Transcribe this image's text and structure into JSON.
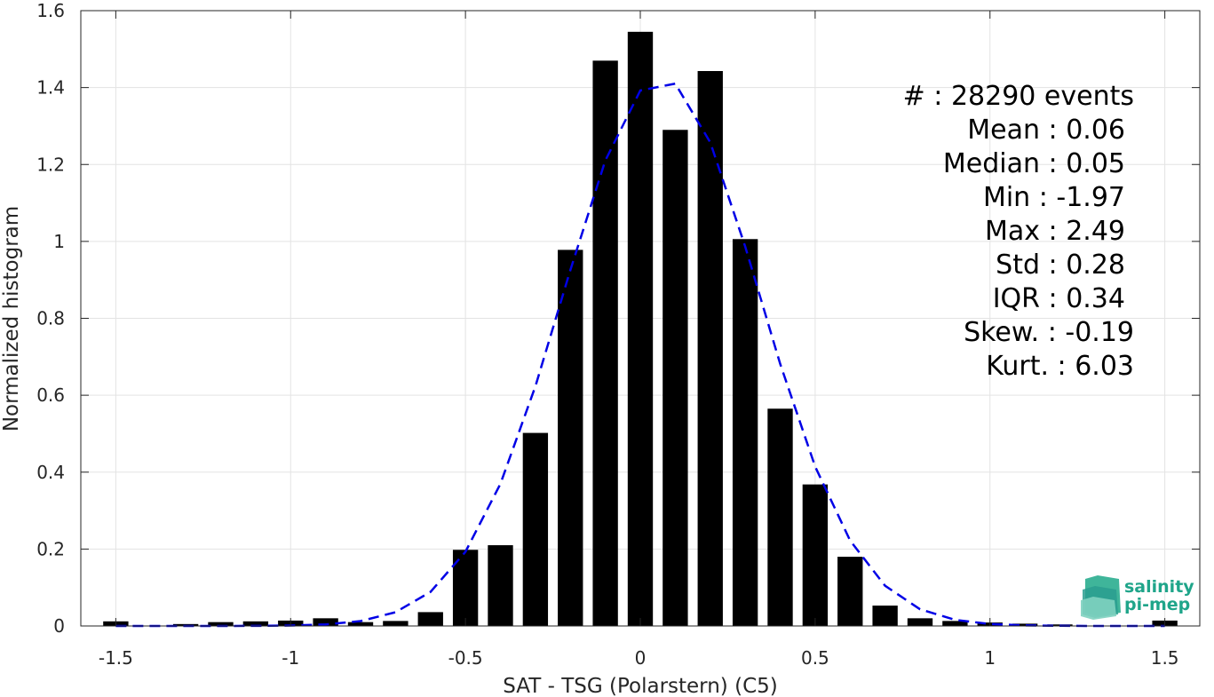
{
  "chart_data": {
    "type": "bar",
    "title": "",
    "xlabel": "SAT - TSG (Polarstern) (C5)",
    "ylabel": "Normalized histogram",
    "xlim": [
      -1.6,
      1.6
    ],
    "ylim": [
      0,
      1.6
    ],
    "xticks": [
      -1.5,
      -1,
      -0.5,
      0,
      0.5,
      1,
      1.5
    ],
    "xtick_labels": [
      "-1.5",
      "-1",
      "-0.5",
      "0",
      "0.5",
      "1",
      "1.5"
    ],
    "yticks": [
      0,
      0.2,
      0.4,
      0.6,
      0.8,
      1,
      1.2,
      1.4,
      1.6
    ],
    "ytick_labels": [
      "0",
      "0.2",
      "0.4",
      "0.6",
      "0.8",
      "1",
      "1.2",
      "1.4",
      "1.6"
    ],
    "grid": true,
    "bar_width": 0.072,
    "bins": [
      {
        "x": -1.5,
        "y": 0.012
      },
      {
        "x": -1.4,
        "y": 0.0
      },
      {
        "x": -1.3,
        "y": 0.005
      },
      {
        "x": -1.2,
        "y": 0.01
      },
      {
        "x": -1.1,
        "y": 0.012
      },
      {
        "x": -1.0,
        "y": 0.014
      },
      {
        "x": -0.9,
        "y": 0.02
      },
      {
        "x": -0.8,
        "y": 0.01
      },
      {
        "x": -0.7,
        "y": 0.013
      },
      {
        "x": -0.6,
        "y": 0.036
      },
      {
        "x": -0.5,
        "y": 0.198
      },
      {
        "x": -0.4,
        "y": 0.21
      },
      {
        "x": -0.3,
        "y": 0.502
      },
      {
        "x": -0.2,
        "y": 0.978
      },
      {
        "x": -0.1,
        "y": 1.47
      },
      {
        "x": 0.0,
        "y": 1.545
      },
      {
        "x": 0.1,
        "y": 1.29
      },
      {
        "x": 0.2,
        "y": 1.443
      },
      {
        "x": 0.3,
        "y": 1.006
      },
      {
        "x": 0.4,
        "y": 0.565
      },
      {
        "x": 0.5,
        "y": 0.368
      },
      {
        "x": 0.6,
        "y": 0.18
      },
      {
        "x": 0.7,
        "y": 0.053
      },
      {
        "x": 0.8,
        "y": 0.02
      },
      {
        "x": 0.9,
        "y": 0.013
      },
      {
        "x": 1.0,
        "y": 0.009
      },
      {
        "x": 1.1,
        "y": 0.006
      },
      {
        "x": 1.2,
        "y": 0.004
      },
      {
        "x": 1.3,
        "y": 0.0
      },
      {
        "x": 1.4,
        "y": 0.0
      },
      {
        "x": 1.5,
        "y": 0.014
      }
    ],
    "fit": {
      "style": "dashed",
      "color": "#0000e6",
      "mean": 0.06,
      "std": 0.28,
      "x_range": [
        -1.5,
        1.5
      ]
    },
    "annotations": [
      "#  : 28290 events",
      "Mean : 0.06",
      "Median : 0.05",
      "Min : -1.97",
      "Max : 2.49",
      "Std : 0.28",
      "IQR : 0.34",
      "Skew. : -0.19",
      "Kurt. : 6.03"
    ]
  },
  "logo": {
    "line1": "salinity",
    "line2": "pi-mep"
  }
}
